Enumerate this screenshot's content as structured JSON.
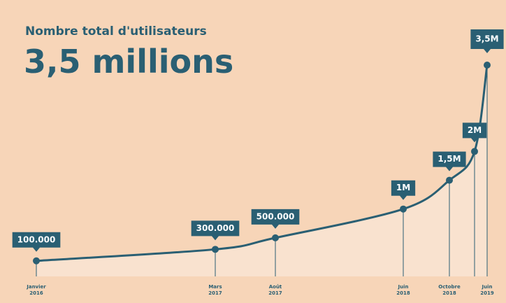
{
  "chart_data": {
    "type": "line",
    "title": "Nombre total d'utilisateurs",
    "subtitle": "3,5 millions",
    "categories": [
      "Janvier 2016",
      "Mars 2017",
      "Août 2017",
      "Juin 2018",
      "Octobre 2018",
      null,
      "Juin 2019"
    ],
    "values": [
      100000,
      300000,
      500000,
      1000000,
      1500000,
      2000000,
      3500000
    ],
    "value_labels": [
      "100.000",
      "300.000",
      "500.000",
      "1M",
      "1,5M",
      "2M",
      "3,5M"
    ],
    "color": "#2a5f73"
  }
}
